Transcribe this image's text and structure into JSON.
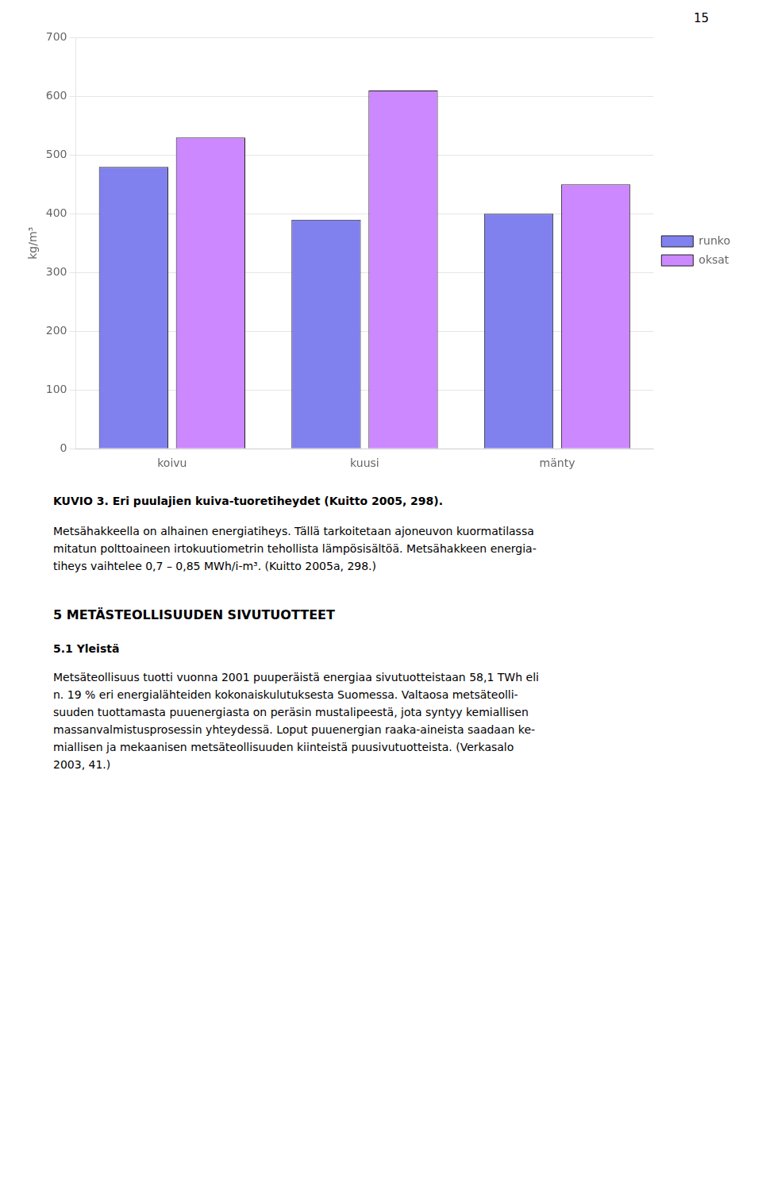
{
  "chart_data": {
    "type": "bar",
    "title": "KUVIO 3. Eri puulajien kuiva-tuoretiheydet (Kuitto 2005, 298).",
    "categories": [
      "koivu",
      "kuusi",
      "mänty"
    ],
    "series": [
      {
        "name": "runko",
        "color": "#8080EE",
        "values": [
          480,
          390,
          400
        ]
      },
      {
        "name": "oksat",
        "color": "#CC88FF",
        "values": [
          530,
          610,
          450
        ]
      }
    ],
    "ylabel": "kg/m³",
    "ylim": [
      0,
      700
    ],
    "yticks": [
      0,
      100,
      200,
      300,
      400,
      500,
      600,
      700
    ],
    "grid": true,
    "legend": "right",
    "annotations": [
      "15",
      "Metsähakkeella on alhainen energiatiheys. Tällä tarkoitetaan ajoneuvon kuormatilassa",
      "mitatun polttoaineen irtokuutiometrin tehollista lämpösisältöä. Metsähakkeen energia-",
      "tiheys vaihtelee 0,7 – 0,85 MWh/i-m³. (Kuitto 2005a, 298.)",
      "5 METÄSTEOLLISUUDEN SIVUTUOTTEET",
      "5.1 Yleistä",
      "Metsäteollisuus tuotti vuonna 2001 puuperäistä energiaa sivutuotteistaan 58,1 TWh eli",
      "n. 19 % eri energialähteiden kokonaiskulutuksesta Suomessa. Valtaosa metsäteolli-",
      "suuden tuottamasta puuenergiasta on peräsin mustalipeestä, jota syntyy kemiallisen",
      "massanvalmistusprosessin yhteydessä. Loput puuenergian raaka-aineista saadaan ke-",
      "miallisen ja mekaanisen metsäteollisuuden kiinteistä puusivutuotteista. (Verkasalo",
      "2003, 41.)"
    ]
  }
}
